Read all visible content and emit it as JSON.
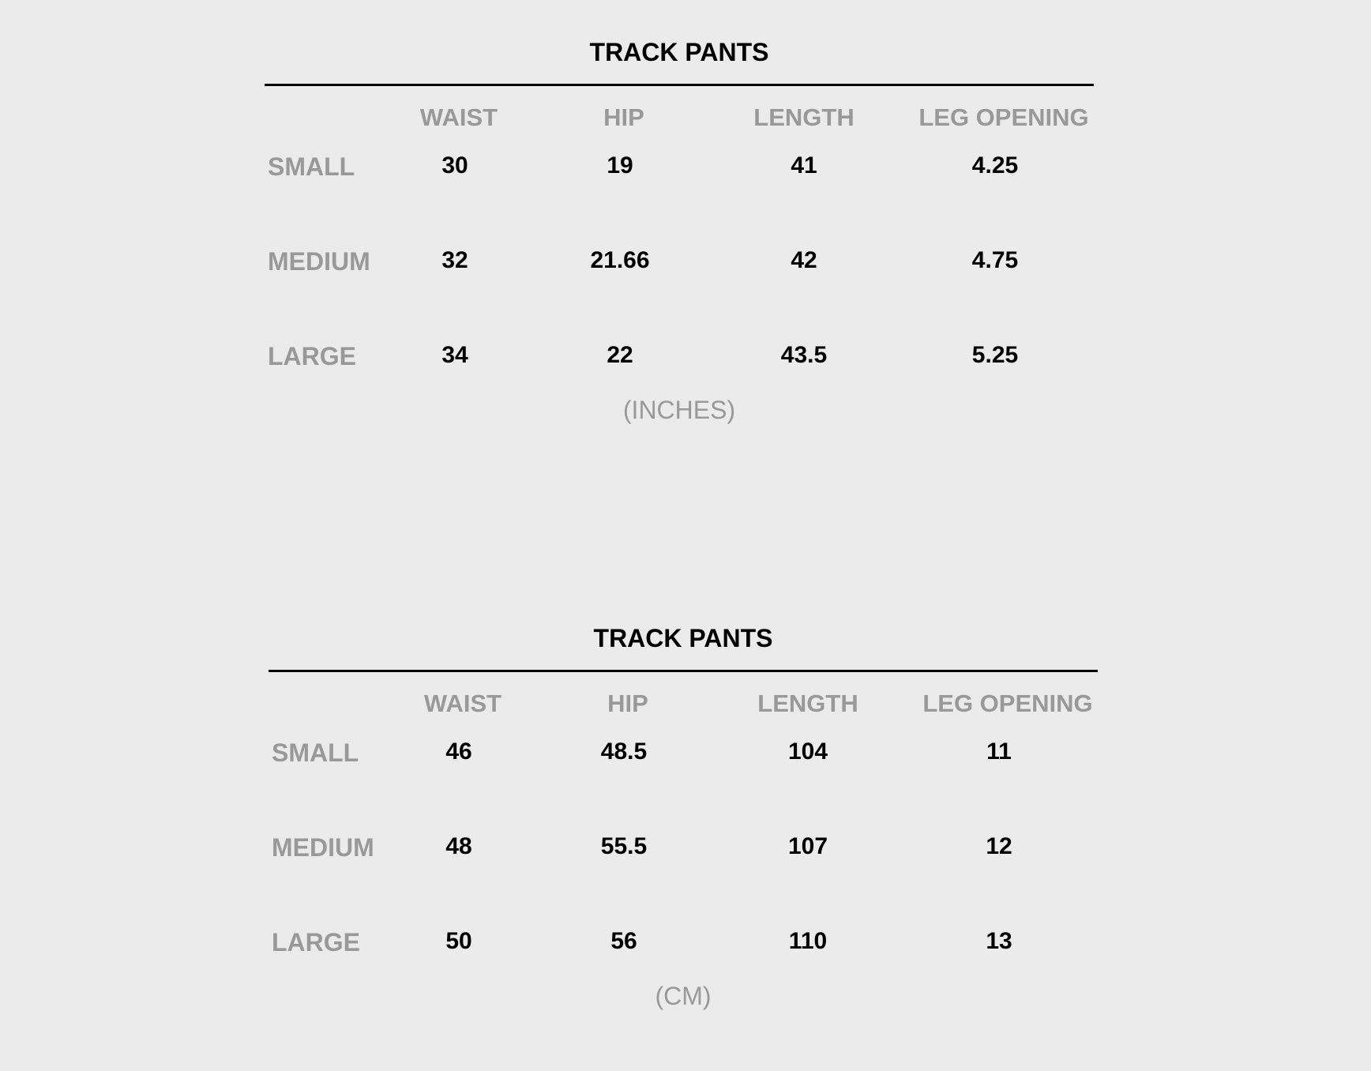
{
  "tables": [
    {
      "title": "TRACK PANTS",
      "columns": [
        "WAIST",
        "HIP",
        "LENGTH",
        "LEG OPENING"
      ],
      "rows": [
        {
          "label": "SMALL",
          "values": [
            "30",
            "19",
            "41",
            "4.25"
          ]
        },
        {
          "label": "MEDIUM",
          "values": [
            "32",
            "21.66",
            "42",
            "4.75"
          ]
        },
        {
          "label": "LARGE",
          "values": [
            "34",
            "22",
            "43.5",
            "5.25"
          ]
        }
      ],
      "units": "(INCHES)"
    },
    {
      "title": "TRACK PANTS",
      "columns": [
        "WAIST",
        "HIP",
        "LENGTH",
        "LEG OPENING"
      ],
      "rows": [
        {
          "label": "SMALL",
          "values": [
            "46",
            "48.5",
            "104",
            "11"
          ]
        },
        {
          "label": "MEDIUM",
          "values": [
            "48",
            "55.5",
            "107",
            "12"
          ]
        },
        {
          "label": "LARGE",
          "values": [
            "50",
            "56",
            "110",
            "13"
          ]
        }
      ],
      "units": "(CM)"
    }
  ],
  "colors": {
    "background": "#ebebeb",
    "label_gray": "#999999",
    "value_black": "#000000"
  }
}
